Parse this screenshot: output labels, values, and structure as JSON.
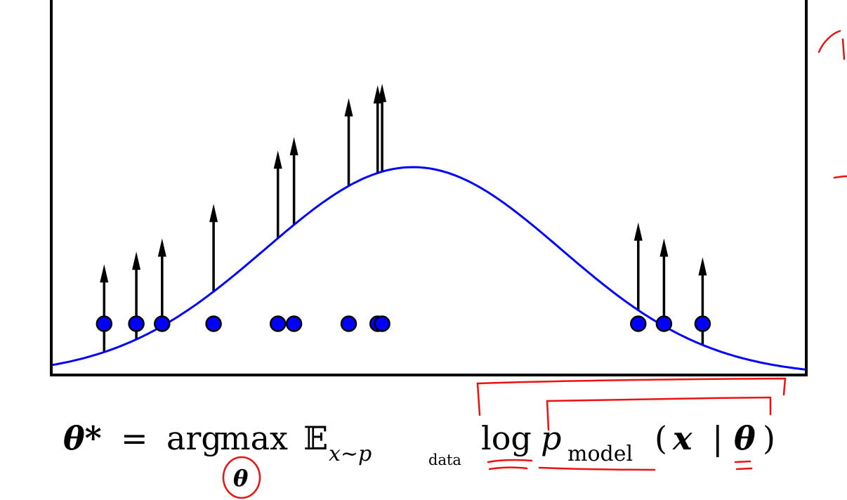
{
  "chart_data": {
    "type": "scatter",
    "description_points": "data points on the x axis with upward arrows from the density curve",
    "points": [
      0.8,
      1.3,
      1.7,
      2.5,
      3.5,
      3.75,
      4.6,
      5.05,
      5.12,
      9.1,
      9.5,
      10.1
    ],
    "curve": {
      "kind": "gaussian",
      "mean": 5.6,
      "std": 2.3
    },
    "colors": {
      "points": "#0000ff",
      "curve": "#0000ff",
      "arrows": "#000000",
      "annotations": "#ee1111"
    }
  },
  "formula": {
    "theta_star": "θ*",
    "equals": "=",
    "argmax_arg": "arg",
    "argmax_max": "max",
    "argmax_sub": "θ",
    "expectation": "𝔼",
    "exp_sub_x": "x∼p",
    "exp_sub_data": "data",
    "log": "log",
    "p": "p",
    "p_sub": "model",
    "open_paren": "(",
    "x": "x",
    "bar": "|",
    "theta": "θ",
    "close_paren": ")"
  }
}
